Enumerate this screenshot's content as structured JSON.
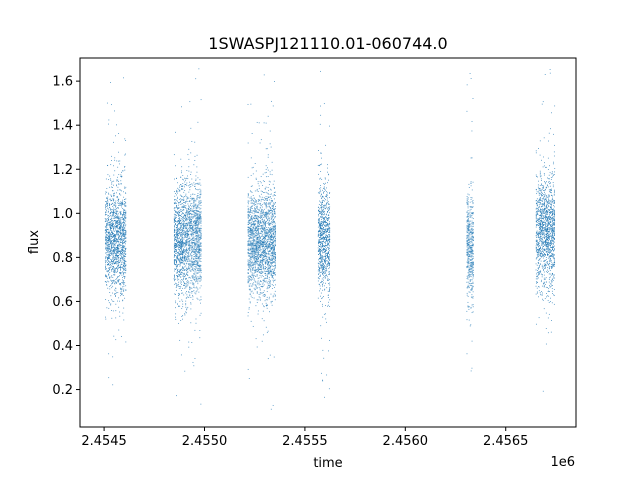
{
  "chart_data": {
    "type": "scatter",
    "title": "1SWASPJ121110.01-060744.0",
    "xlabel": "time",
    "ylabel": "flux",
    "x_offset_label": "1e6",
    "xlim": [
      2454380,
      2456850
    ],
    "ylim": [
      0.03,
      1.705
    ],
    "x_ticks": [
      2454500,
      2455000,
      2455500,
      2456000,
      2456500
    ],
    "x_tick_labels": [
      "2.4545",
      "2.4550",
      "2.4555",
      "2.4560",
      "2.4565"
    ],
    "y_ticks": [
      0.2,
      0.4,
      0.6,
      0.8,
      1.0,
      1.2,
      1.4,
      1.6
    ],
    "y_tick_labels": [
      "0.2",
      "0.4",
      "0.6",
      "0.8",
      "1.0",
      "1.2",
      "1.4",
      "1.6"
    ],
    "point_color": "#1f77b4",
    "grid": false,
    "legend": "none",
    "series": [
      {
        "points_summary": "dense clusters of observations in seasons",
        "seasons": [
          {
            "x_start": 2454505,
            "x_end": 2454610,
            "median_flux": 0.88,
            "min_flux": 0.22,
            "max_flux": 1.63
          },
          {
            "x_start": 2454848,
            "x_end": 2454985,
            "median_flux": 0.88,
            "min_flux": 0.09,
            "max_flux": 1.66
          },
          {
            "x_start": 2455215,
            "x_end": 2455355,
            "median_flux": 0.87,
            "min_flux": 0.11,
            "max_flux": 1.66
          },
          {
            "x_start": 2455565,
            "x_end": 2455625,
            "median_flux": 0.88,
            "min_flux": 0.15,
            "max_flux": 1.65
          },
          {
            "x_start": 2456305,
            "x_end": 2456340,
            "median_flux": 0.85,
            "min_flux": 0.18,
            "max_flux": 1.65
          },
          {
            "x_start": 2456650,
            "x_end": 2456745,
            "median_flux": 0.92,
            "min_flux": 0.09,
            "max_flux": 1.67
          }
        ]
      }
    ]
  }
}
